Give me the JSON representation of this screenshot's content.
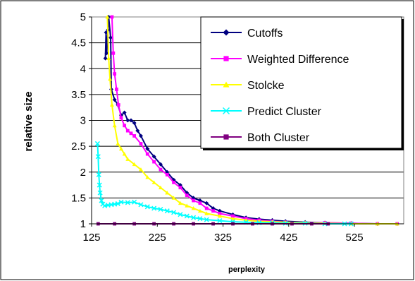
{
  "chart_data": {
    "type": "line",
    "xlabel": "perplexity",
    "ylabel": "relative size",
    "xlim": [
      125,
      600
    ],
    "ylim": [
      1,
      5
    ],
    "xticks": [
      "125",
      "225",
      "325",
      "425",
      "525"
    ],
    "yticks": [
      "1",
      "1.5",
      "2",
      "2.5",
      "3",
      "3.5",
      "4",
      "4.5",
      "5"
    ],
    "grid": "horizontal",
    "legend_position": "top-right",
    "series": [
      {
        "name": "Cutoffs",
        "color": "#000080",
        "marker": "diamond",
        "points": [
          [
            146,
            4.2
          ],
          [
            147,
            4.7
          ],
          [
            148,
            4.3
          ],
          [
            150,
            4.75
          ],
          [
            151,
            5.0
          ],
          [
            154,
            4.6
          ],
          [
            155,
            3.6
          ],
          [
            160,
            3.4
          ],
          [
            165,
            3.3
          ],
          [
            170,
            3.1
          ],
          [
            175,
            3.15
          ],
          [
            180,
            3.0
          ],
          [
            185,
            3.0
          ],
          [
            190,
            2.95
          ],
          [
            195,
            2.8
          ],
          [
            200,
            2.7
          ],
          [
            210,
            2.45
          ],
          [
            220,
            2.3
          ],
          [
            230,
            2.15
          ],
          [
            240,
            2.0
          ],
          [
            250,
            1.85
          ],
          [
            260,
            1.75
          ],
          [
            270,
            1.6
          ],
          [
            280,
            1.5
          ],
          [
            290,
            1.45
          ],
          [
            300,
            1.4
          ],
          [
            310,
            1.3
          ],
          [
            320,
            1.25
          ],
          [
            340,
            1.18
          ],
          [
            360,
            1.12
          ],
          [
            380,
            1.09
          ],
          [
            400,
            1.07
          ],
          [
            420,
            1.05
          ],
          [
            450,
            1.03
          ],
          [
            480,
            1.02
          ],
          [
            520,
            1.01
          ],
          [
            560,
            1.0
          ],
          [
            590,
            1.0
          ]
        ]
      },
      {
        "name": "Weighted Difference",
        "color": "#FF00FF",
        "marker": "square",
        "points": [
          [
            156,
            5.0
          ],
          [
            158,
            4.3
          ],
          [
            160,
            3.9
          ],
          [
            163,
            3.6
          ],
          [
            166,
            3.3
          ],
          [
            170,
            3.05
          ],
          [
            175,
            2.9
          ],
          [
            180,
            2.8
          ],
          [
            185,
            2.75
          ],
          [
            190,
            2.7
          ],
          [
            200,
            2.55
          ],
          [
            210,
            2.35
          ],
          [
            220,
            2.2
          ],
          [
            230,
            2.05
          ],
          [
            240,
            1.95
          ],
          [
            250,
            1.8
          ],
          [
            260,
            1.7
          ],
          [
            270,
            1.55
          ],
          [
            280,
            1.45
          ],
          [
            290,
            1.4
          ],
          [
            300,
            1.3
          ],
          [
            310,
            1.25
          ],
          [
            320,
            1.2
          ],
          [
            340,
            1.15
          ],
          [
            360,
            1.1
          ],
          [
            380,
            1.07
          ],
          [
            400,
            1.05
          ],
          [
            420,
            1.03
          ],
          [
            450,
            1.02
          ],
          [
            480,
            1.02
          ],
          [
            520,
            1.01
          ],
          [
            560,
            1.0
          ],
          [
            590,
            1.0
          ]
        ]
      },
      {
        "name": "Stolcke",
        "color": "#FFFF00",
        "marker": "triangle",
        "points": [
          [
            149,
            5.0
          ],
          [
            151,
            4.2
          ],
          [
            153,
            3.8
          ],
          [
            156,
            3.3
          ],
          [
            160,
            2.9
          ],
          [
            165,
            2.55
          ],
          [
            170,
            2.45
          ],
          [
            175,
            2.35
          ],
          [
            180,
            2.25
          ],
          [
            190,
            2.15
          ],
          [
            200,
            2.05
          ],
          [
            210,
            1.9
          ],
          [
            220,
            1.8
          ],
          [
            230,
            1.7
          ],
          [
            240,
            1.6
          ],
          [
            250,
            1.5
          ],
          [
            260,
            1.4
          ],
          [
            270,
            1.35
          ],
          [
            280,
            1.3
          ],
          [
            290,
            1.25
          ],
          [
            300,
            1.2
          ],
          [
            320,
            1.15
          ],
          [
            340,
            1.1
          ],
          [
            360,
            1.07
          ],
          [
            380,
            1.05
          ],
          [
            400,
            1.04
          ],
          [
            420,
            1.03
          ],
          [
            450,
            1.02
          ],
          [
            480,
            1.01
          ],
          [
            520,
            1.0
          ],
          [
            560,
            1.0
          ],
          [
            590,
            1.0
          ]
        ]
      },
      {
        "name": "Predict Cluster",
        "color": "#00FFFF",
        "marker": "x",
        "points": [
          [
            134,
            2.55
          ],
          [
            135,
            2.3
          ],
          [
            136,
            1.95
          ],
          [
            137,
            1.75
          ],
          [
            138,
            1.6
          ],
          [
            140,
            1.45
          ],
          [
            142,
            1.38
          ],
          [
            145,
            1.35
          ],
          [
            150,
            1.36
          ],
          [
            155,
            1.37
          ],
          [
            160,
            1.38
          ],
          [
            165,
            1.39
          ],
          [
            170,
            1.42
          ],
          [
            180,
            1.41
          ],
          [
            190,
            1.42
          ],
          [
            200,
            1.37
          ],
          [
            210,
            1.33
          ],
          [
            220,
            1.3
          ],
          [
            230,
            1.28
          ],
          [
            240,
            1.25
          ],
          [
            250,
            1.22
          ],
          [
            260,
            1.18
          ],
          [
            270,
            1.15
          ],
          [
            280,
            1.12
          ],
          [
            290,
            1.1
          ],
          [
            300,
            1.08
          ],
          [
            320,
            1.06
          ],
          [
            340,
            1.04
          ],
          [
            360,
            1.03
          ],
          [
            380,
            1.02
          ],
          [
            400,
            1.02
          ],
          [
            420,
            1.01
          ],
          [
            450,
            1.01
          ],
          [
            480,
            1.0
          ],
          [
            510,
            1.0
          ],
          [
            520,
            1.0
          ]
        ]
      },
      {
        "name": "Both Cluster",
        "color": "#800080",
        "marker": "square",
        "points": [
          [
            135,
            1.0
          ],
          [
            160,
            1.0
          ],
          [
            190,
            1.0
          ],
          [
            220,
            1.0
          ],
          [
            250,
            1.0
          ],
          [
            280,
            1.0
          ],
          [
            310,
            1.0
          ],
          [
            340,
            1.0
          ],
          [
            370,
            1.0
          ],
          [
            400,
            1.0
          ],
          [
            430,
            1.0
          ],
          [
            460,
            1.0
          ],
          [
            485,
            1.0
          ]
        ]
      }
    ]
  }
}
